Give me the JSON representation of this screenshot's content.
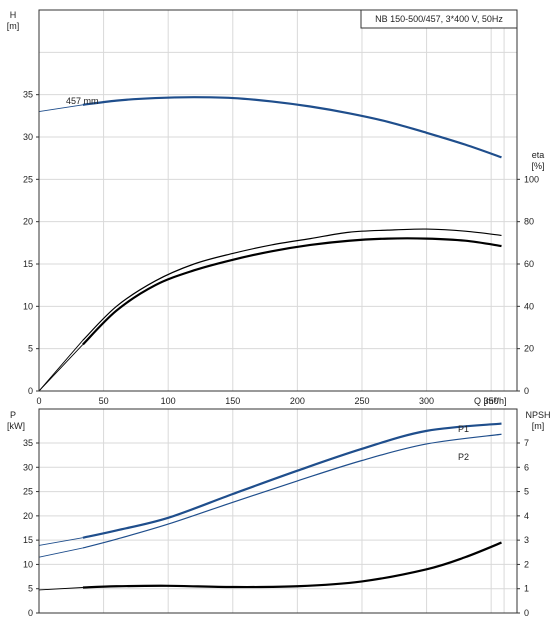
{
  "chart_data": [
    {
      "type": "line",
      "panel": "head-efficiency",
      "title": "NB 150-500/457, 3*400 V, 50Hz",
      "xlabel": "Q [m³/h]",
      "ylabel_left": {
        "top": "H",
        "bottom": "[m]"
      },
      "ylabel_right": {
        "top": "eta",
        "bottom": "[%]"
      },
      "xlim": [
        0,
        370
      ],
      "ylim_left": [
        0,
        45
      ],
      "ylim_right": [
        0,
        180
      ],
      "x_ticks": [
        "0",
        "50",
        "100",
        "150",
        "200",
        "250",
        "300",
        "350"
      ],
      "y_ticks_left": [
        "0",
        "5",
        "10",
        "15",
        "20",
        "25",
        "30",
        "35"
      ],
      "y_ticks_right": [
        "0",
        "20",
        "40",
        "60",
        "80",
        "100"
      ],
      "grid": true,
      "series": [
        {
          "name": "457 mm",
          "axis": "left",
          "color": "#1f4e8c",
          "x": [
            0,
            34,
            60,
            90,
            120,
            150,
            180,
            210,
            240,
            270,
            300,
            330,
            358
          ],
          "y": [
            33.0,
            33.8,
            34.3,
            34.6,
            34.7,
            34.6,
            34.2,
            33.6,
            32.8,
            31.8,
            30.5,
            29.1,
            27.6
          ]
        },
        {
          "name": "",
          "axis": "right",
          "color": "#000000",
          "x": [
            0,
            34,
            60,
            90,
            120,
            150,
            180,
            210,
            240,
            270,
            300,
            330,
            358
          ],
          "y": [
            0,
            22,
            38,
            50,
            57,
            62,
            66,
            69,
            71,
            72,
            72,
            71,
            68.5
          ]
        },
        {
          "name": "",
          "axis": "right",
          "color": "#000000",
          "x": [
            0,
            34,
            60,
            90,
            120,
            150,
            180,
            210,
            240,
            270,
            300,
            330,
            358
          ],
          "y": [
            0,
            24,
            40,
            52,
            60,
            65,
            69,
            72,
            75,
            76,
            76.5,
            75.5,
            73.5
          ]
        }
      ]
    },
    {
      "type": "line",
      "panel": "power-npsh",
      "xlabel": "",
      "ylabel_left": {
        "top": "P",
        "bottom": "[kW]"
      },
      "ylabel_right": {
        "top": "NPSH",
        "bottom": "[m]"
      },
      "xlim": [
        0,
        370
      ],
      "ylim_left": [
        0,
        42
      ],
      "ylim_right": [
        0,
        8.4
      ],
      "y_ticks_left": [
        "0",
        "5",
        "10",
        "15",
        "20",
        "25",
        "30",
        "35"
      ],
      "y_ticks_right": [
        "0",
        "1",
        "2",
        "3",
        "4",
        "5",
        "6",
        "7"
      ],
      "grid": true,
      "series": [
        {
          "name": "P1",
          "axis": "left",
          "color": "#1f4e8c",
          "x": [
            0,
            34,
            60,
            100,
            150,
            200,
            250,
            300,
            358
          ],
          "y": [
            13.9,
            15.5,
            17.0,
            19.6,
            24.5,
            29.3,
            33.8,
            37.5,
            39.0
          ]
        },
        {
          "name": "P2",
          "axis": "left",
          "color": "#1f4e8c",
          "x": [
            0,
            34,
            60,
            100,
            150,
            200,
            250,
            300,
            358
          ],
          "y": [
            11.5,
            13.4,
            15.2,
            18.3,
            22.8,
            27.2,
            31.4,
            34.8,
            36.8
          ]
        },
        {
          "name": "",
          "axis": "right",
          "color": "#000000",
          "x": [
            0,
            34,
            60,
            100,
            150,
            200,
            250,
            300,
            330,
            358
          ],
          "y": [
            0.95,
            1.05,
            1.1,
            1.12,
            1.07,
            1.1,
            1.3,
            1.8,
            2.3,
            2.9
          ]
        }
      ]
    }
  ]
}
